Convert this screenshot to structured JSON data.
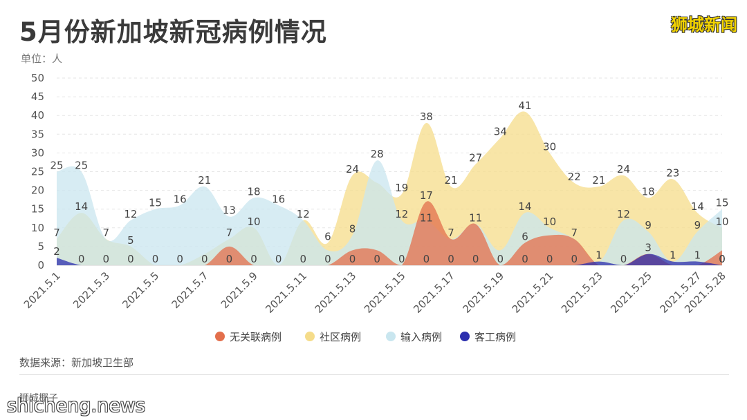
{
  "header": {
    "title": "5月份新加坡新冠病例情况",
    "unit": "单位：人",
    "brand": "狮城新闻"
  },
  "footer": {
    "source": "数据来源：新加坡卫生部",
    "author": "狮城椰子",
    "watermark": "shicheng.news"
  },
  "chart_data": {
    "type": "area",
    "x": [
      "2021.5.1",
      "2021.5.2",
      "2021.5.3",
      "2021.5.4",
      "2021.5.5",
      "2021.5.6",
      "2021.5.7",
      "2021.5.8",
      "2021.5.9",
      "2021.5.10",
      "2021.5.11",
      "2021.5.12",
      "2021.5.13",
      "2021.5.14",
      "2021.5.15",
      "2021.5.16",
      "2021.5.17",
      "2021.5.18",
      "2021.5.19",
      "2021.5.20",
      "2021.5.21",
      "2021.5.22",
      "2021.5.23",
      "2021.5.24",
      "2021.5.25",
      "2021.5.26",
      "2021.5.27",
      "2021.5.28"
    ],
    "x_tick_labels": [
      "2021.5.1",
      "2021.5.3",
      "2021.5.5",
      "2021.5.7",
      "2021.5.9",
      "2021.5.11",
      "2021.5.13",
      "2021.5.15",
      "2021.5.17",
      "2021.5.19",
      "2021.5.21",
      "2021.5.23",
      "2021.5.25",
      "2021.5.27",
      "2021.5.28"
    ],
    "ylim": [
      0,
      50
    ],
    "yticks": [
      0,
      5,
      10,
      15,
      20,
      25,
      30,
      35,
      40,
      45,
      50
    ],
    "grid": true,
    "legend_position": "bottom",
    "series": [
      {
        "name": "社区病例",
        "color": "#f5dc8a",
        "values": [
          7,
          14,
          7,
          5,
          0,
          0,
          3,
          7,
          10,
          0,
          12,
          6,
          24,
          22,
          19,
          38,
          21,
          27,
          34,
          41,
          30,
          22,
          21,
          24,
          18,
          23,
          14,
          10
        ]
      },
      {
        "name": "输入病例",
        "color": "#c9e6ef",
        "values": [
          25,
          25,
          7,
          12,
          15,
          16,
          21,
          13,
          18,
          16,
          12,
          4,
          8,
          28,
          12,
          12,
          7,
          11,
          4,
          14,
          10,
          7,
          1,
          12,
          9,
          1,
          9,
          15
        ]
      },
      {
        "name": "无关联病例",
        "color": "#e36f4c",
        "values": [
          0,
          0,
          0,
          0,
          0,
          0,
          0,
          5,
          0,
          0,
          0,
          0,
          4,
          4,
          0,
          17,
          7,
          11,
          0,
          6,
          8,
          7,
          0,
          0,
          3,
          0,
          0,
          4
        ]
      },
      {
        "name": "客工病例",
        "color": "#2c2fae",
        "values": [
          2,
          0,
          0,
          0,
          0,
          0,
          0,
          0,
          0,
          0,
          0,
          0,
          0,
          0,
          0,
          0,
          0,
          0,
          0,
          0,
          0,
          0,
          1,
          0,
          3,
          1,
          1,
          0
        ]
      }
    ],
    "data_labels": [
      {
        "x": "2021.5.1",
        "text": "25"
      },
      {
        "x": "2021.5.1",
        "text": "7"
      },
      {
        "x": "2021.5.1",
        "text": "2"
      },
      {
        "x": "2021.5.2",
        "text": "25"
      },
      {
        "x": "2021.5.2",
        "text": "14"
      },
      {
        "x": "2021.5.2",
        "text": "0"
      },
      {
        "x": "2021.5.3",
        "text": "7"
      },
      {
        "x": "2021.5.3",
        "text": "0"
      },
      {
        "x": "2021.5.4",
        "text": "12"
      },
      {
        "x": "2021.5.4",
        "text": "5"
      },
      {
        "x": "2021.5.4",
        "text": "0"
      },
      {
        "x": "2021.5.5",
        "text": "15"
      },
      {
        "x": "2021.5.5",
        "text": "0"
      },
      {
        "x": "2021.5.6",
        "text": "16"
      },
      {
        "x": "2021.5.6",
        "text": "0"
      },
      {
        "x": "2021.5.7",
        "text": "21"
      },
      {
        "x": "2021.5.7",
        "text": "0"
      },
      {
        "x": "2021.5.8",
        "text": "13"
      },
      {
        "x": "2021.5.8",
        "text": "7"
      },
      {
        "x": "2021.5.8",
        "text": "0"
      },
      {
        "x": "2021.5.9",
        "text": "18"
      },
      {
        "x": "2021.5.9",
        "text": "10"
      },
      {
        "x": "2021.5.9",
        "text": "0"
      },
      {
        "x": "2021.5.10",
        "text": "16"
      },
      {
        "x": "2021.5.10",
        "text": "0"
      },
      {
        "x": "2021.5.11",
        "text": "12"
      },
      {
        "x": "2021.5.11",
        "text": "0"
      },
      {
        "x": "2021.5.12",
        "text": "6"
      },
      {
        "x": "2021.5.12",
        "text": "0"
      },
      {
        "x": "2021.5.13",
        "text": "24"
      },
      {
        "x": "2021.5.13",
        "text": "8"
      },
      {
        "x": "2021.5.13",
        "text": "0"
      },
      {
        "x": "2021.5.14",
        "text": "28"
      },
      {
        "x": "2021.5.14",
        "text": "0"
      },
      {
        "x": "2021.5.15",
        "text": "19"
      },
      {
        "x": "2021.5.15",
        "text": "12"
      },
      {
        "x": "2021.5.15",
        "text": "0"
      },
      {
        "x": "2021.5.16",
        "text": "38"
      },
      {
        "x": "2021.5.16",
        "text": "17"
      },
      {
        "x": "2021.5.16",
        "text": "11"
      },
      {
        "x": "2021.5.16",
        "text": "0"
      },
      {
        "x": "2021.5.17",
        "text": "21"
      },
      {
        "x": "2021.5.17",
        "text": "7"
      },
      {
        "x": "2021.5.17",
        "text": "0"
      },
      {
        "x": "2021.5.18",
        "text": "27"
      },
      {
        "x": "2021.5.18",
        "text": "11"
      },
      {
        "x": "2021.5.18",
        "text": "0"
      },
      {
        "x": "2021.5.19",
        "text": "34"
      },
      {
        "x": "2021.5.19",
        "text": "0"
      },
      {
        "x": "2021.5.20",
        "text": "41"
      },
      {
        "x": "2021.5.20",
        "text": "14"
      },
      {
        "x": "2021.5.20",
        "text": "6"
      },
      {
        "x": "2021.5.20",
        "text": "0"
      },
      {
        "x": "2021.5.21",
        "text": "30"
      },
      {
        "x": "2021.5.21",
        "text": "10"
      },
      {
        "x": "2021.5.21",
        "text": "0"
      },
      {
        "x": "2021.5.22",
        "text": "22"
      },
      {
        "x": "2021.5.22",
        "text": "7"
      },
      {
        "x": "2021.5.22",
        "text": "0"
      },
      {
        "x": "2021.5.23",
        "text": "21"
      },
      {
        "x": "2021.5.23",
        "text": "1"
      },
      {
        "x": "2021.5.24",
        "text": "24"
      },
      {
        "x": "2021.5.24",
        "text": "12"
      },
      {
        "x": "2021.5.24",
        "text": "0"
      },
      {
        "x": "2021.5.25",
        "text": "18"
      },
      {
        "x": "2021.5.25",
        "text": "9"
      },
      {
        "x": "2021.5.25",
        "text": "3"
      },
      {
        "x": "2021.5.26",
        "text": "23"
      },
      {
        "x": "2021.5.26",
        "text": "1"
      },
      {
        "x": "2021.5.27",
        "text": "14"
      },
      {
        "x": "2021.5.27",
        "text": "9"
      },
      {
        "x": "2021.5.27",
        "text": "1"
      },
      {
        "x": "2021.5.28",
        "text": "15"
      },
      {
        "x": "2021.5.28",
        "text": "10"
      },
      {
        "x": "2021.5.28",
        "text": "0"
      },
      {
        "x": "2021.5.28",
        "text": "0"
      }
    ]
  }
}
